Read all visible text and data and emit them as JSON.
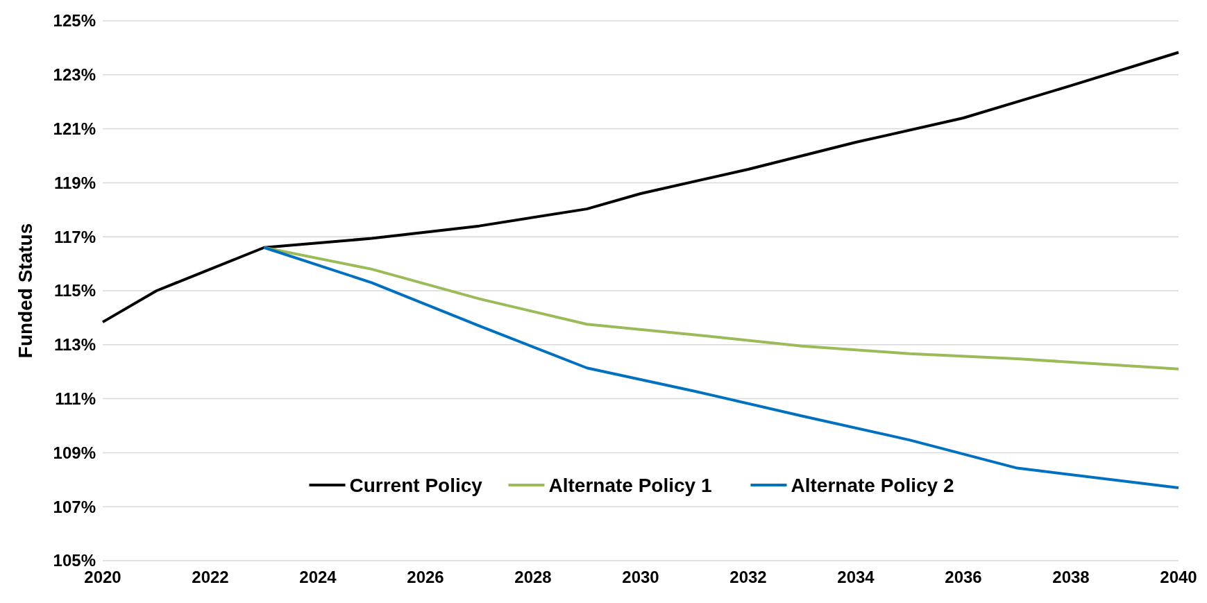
{
  "chart_data": {
    "type": "line",
    "ylabel": "Funded Status",
    "x": [
      2020,
      2021,
      2022,
      2023,
      2025,
      2027,
      2029,
      2030,
      2032,
      2034,
      2036,
      2038,
      2040
    ],
    "series": [
      {
        "name": "Current Policy",
        "color": "#000000",
        "values": [
          113.84,
          115.0,
          115.8,
          116.6,
          116.94,
          117.4,
          118.03,
          118.6,
          119.5,
          120.5,
          121.4,
          122.6,
          123.83
        ]
      },
      {
        "name": "Alternate Policy 1",
        "color": "#9bbb59",
        "x": [
          2023,
          2025,
          2027,
          2029,
          2031,
          2033,
          2035,
          2037,
          2040
        ],
        "values": [
          116.6,
          115.8,
          114.7,
          113.76,
          113.37,
          112.95,
          112.67,
          112.48,
          112.1
        ]
      },
      {
        "name": "Alternate Policy 2",
        "color": "#0070c0",
        "x": [
          2023,
          2025,
          2027,
          2029,
          2031,
          2033,
          2035,
          2037,
          2040
        ],
        "values": [
          116.6,
          115.3,
          113.7,
          112.14,
          111.28,
          110.36,
          109.47,
          108.43,
          107.7
        ]
      }
    ],
    "xlim": [
      2020,
      2040
    ],
    "xticks": [
      2020,
      2022,
      2024,
      2026,
      2028,
      2030,
      2032,
      2034,
      2036,
      2038,
      2040
    ],
    "ylim": [
      105,
      125
    ],
    "yticks": [
      {
        "value": 105,
        "label": "105%"
      },
      {
        "value": 107,
        "label": "107%"
      },
      {
        "value": 109,
        "label": "109%"
      },
      {
        "value": 111,
        "label": "111%"
      },
      {
        "value": 113,
        "label": "113%"
      },
      {
        "value": 115,
        "label": "115%"
      },
      {
        "value": 117,
        "label": "117%"
      },
      {
        "value": 119,
        "label": "119%"
      },
      {
        "value": 121,
        "label": "121%"
      },
      {
        "value": 123,
        "label": "123%"
      },
      {
        "value": 125,
        "label": "125%"
      }
    ],
    "grid": "y",
    "legend": "bottom",
    "marker": "none",
    "line_style": "solid"
  }
}
